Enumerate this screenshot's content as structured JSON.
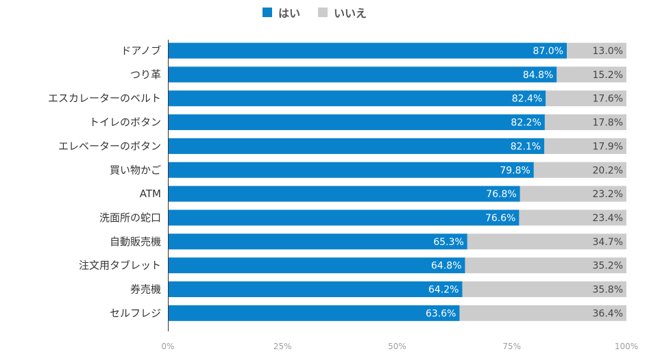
{
  "chart_data": {
    "type": "bar",
    "stacked": true,
    "orientation": "horizontal",
    "legend_position": "top",
    "grid": false,
    "categories": [
      "ドアノブ",
      "つり革",
      "エスカレーターのベルト",
      "トイレのボタン",
      "エレベーターのボタン",
      "買い物かご",
      "ATM",
      "洗面所の蛇口",
      "自動販売機",
      "注文用タブレット",
      "券売機",
      "セルフレジ"
    ],
    "series": [
      {
        "name": "はい",
        "color": "#0a82cb",
        "values": [
          87.0,
          84.8,
          82.4,
          82.2,
          82.1,
          79.8,
          76.8,
          76.6,
          65.3,
          64.8,
          64.2,
          63.6
        ],
        "labels": [
          "87.0%",
          "84.8%",
          "82.4%",
          "82.2%",
          "82.1%",
          "79.8%",
          "76.8%",
          "76.6%",
          "65.3%",
          "64.8%",
          "64.2%",
          "63.6%"
        ]
      },
      {
        "name": "いいえ",
        "color": "#cccccc",
        "values": [
          13.0,
          15.2,
          17.6,
          17.8,
          17.9,
          20.2,
          23.2,
          23.4,
          34.7,
          35.2,
          35.8,
          36.4
        ],
        "labels": [
          "13.0%",
          "15.2%",
          "17.6%",
          "17.8%",
          "17.9%",
          "20.2%",
          "23.2%",
          "23.4%",
          "34.7%",
          "35.2%",
          "35.8%",
          "36.4%"
        ]
      }
    ],
    "xlim": [
      0,
      100
    ],
    "xticks": [
      0,
      25,
      50,
      75,
      100
    ],
    "xtick_labels": [
      "0%",
      "25%",
      "50%",
      "75%",
      "100%"
    ]
  }
}
